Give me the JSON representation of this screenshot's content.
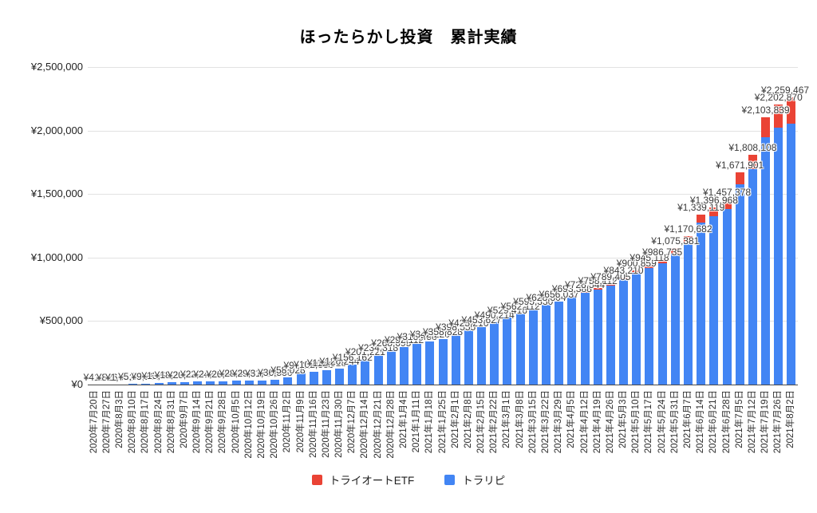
{
  "title": "ほったらかし投資　累計実績",
  "legend": [
    {
      "label": "トライオートETF",
      "color": "#EA4335"
    },
    {
      "label": "トラリピ",
      "color": "#4285F4"
    }
  ],
  "y_axis": {
    "tick_values": [
      0,
      500000,
      1000000,
      1500000,
      2000000,
      2500000
    ],
    "tick_labels": [
      "¥0",
      "¥500,000",
      "¥1,000,000",
      "¥1,500,000",
      "¥2,000,000",
      "¥2,500,000"
    ]
  },
  "chart_data": {
    "type": "bar",
    "stacked": true,
    "title": "ほったらかし投資　累計実績",
    "xlabel": "",
    "ylabel": "",
    "ylim": [
      0,
      2500000
    ],
    "grid": true,
    "legend_position": "bottom",
    "data_label_format": "¥#,##0",
    "categories": [
      "2020年7月20日",
      "2020年7月27日",
      "2020年8月3日",
      "2020年8月10日",
      "2020年8月17日",
      "2020年8月24日",
      "2020年8月31日",
      "2020年9月7日",
      "2020年9月14日",
      "2020年9月21日",
      "2020年9月28日",
      "2020年10月5日",
      "2020年10月12日",
      "2020年10月19日",
      "2020年10月26日",
      "2020年11月2日",
      "2020年11月9日",
      "2020年11月16日",
      "2020年11月23日",
      "2020年11月30日",
      "2020年12月7日",
      "2020年12月14日",
      "2020年12月21日",
      "2020年12月28日",
      "2021年1月4日",
      "2021年1月11日",
      "2021年1月18日",
      "2021年1月25日",
      "2021年2月1日",
      "2021年2月8日",
      "2021年2月15日",
      "2021年2月22日",
      "2021年3月1日",
      "2021年3月8日",
      "2021年3月15日",
      "2021年3月22日",
      "2021年3月29日",
      "2021年4月5日",
      "2021年4月12日",
      "2021年4月19日",
      "2021年4月26日",
      "2021年5月3日",
      "2021年5月10日",
      "2021年5月17日",
      "2021年5月24日",
      "2021年5月31日",
      "2021年6月7日",
      "2021年6月14日",
      "2021年6月21日",
      "2021年6月28日",
      "2021年7月5日",
      "2021年7月12日",
      "2021年7月19日",
      "2021年7月26日",
      "2021年8月2日"
    ],
    "series": [
      {
        "name": "トラリピ",
        "color": "#4285F4",
        "values": [
          413,
          826,
          1952,
          5831,
          9268,
          13512,
          18226,
          20443,
          22318,
          24126,
          26854,
          28415,
          29926,
          31118,
          36533,
          58028,
          91214,
          102336,
          112518,
          126244,
          156162,
          201221,
          234318,
          268695,
          292112,
          318458,
          342220,
          358828,
          398555,
          425216,
          453627,
          490214,
          529416,
          562112,
          595330,
          628804,
          654199,
          689176,
          720026,
          749669,
          779179,
          826892,
          878444,
          918006,
          955487,
          1033269,
          1118461,
          1272703,
          1324750,
          1379043,
          1573789,
          1697663,
          1945621,
          2020536,
          2051355
        ]
      },
      {
        "name": "トライオートETF",
        "color": "#EA4335",
        "values": [
          0,
          0,
          0,
          0,
          0,
          0,
          0,
          0,
          0,
          0,
          0,
          0,
          0,
          0,
          0,
          0,
          0,
          0,
          0,
          0,
          0,
          0,
          0,
          0,
          0,
          0,
          0,
          0,
          0,
          0,
          0,
          0,
          0,
          0,
          0,
          0,
          1838,
          4212,
          6518,
          8443,
          10226,
          16318,
          22415,
          27112,
          31248,
          42112,
          52221,
          66416,
          72218,
          78335,
          98112,
          110445,
          158218,
          182334,
          208112
        ]
      }
    ],
    "notable_total_labels": [
      "¥268,695",
      "¥398,555",
      "¥453,627",
      "¥529,416",
      "¥693,388",
      "¥789,405",
      "¥900,859",
      "¥986,735",
      "¥1,075,381",
      "¥1,170,682",
      "¥1,339,119",
      "¥1,396,968",
      "¥1,457,378",
      "¥1,671,901",
      "¥1,808,108",
      "¥2,103,839",
      "¥2,202,870",
      "¥2,259,467"
    ]
  }
}
